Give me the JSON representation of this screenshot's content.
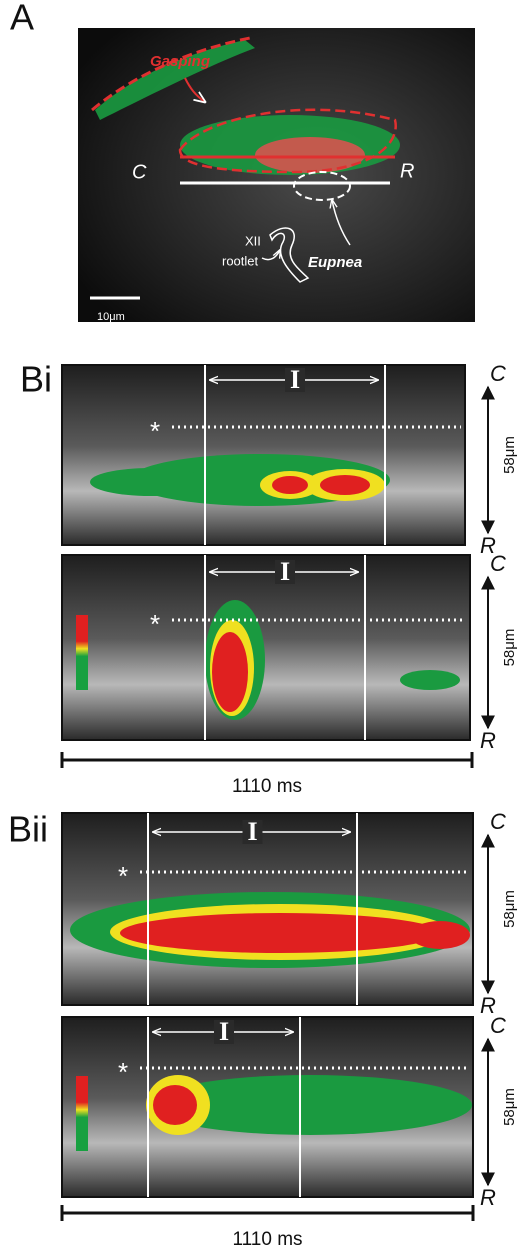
{
  "panel_a": {
    "label": "A",
    "gasping": "Gasping",
    "caudal": "C",
    "rostral": "R",
    "rootlet_1": "XII",
    "rootlet_2": "rootlet",
    "eupnea": "Eupnea",
    "scale_bar": "10μm"
  },
  "panel_bi": {
    "label": "Bi",
    "traces": [
      {
        "interval": "I",
        "marker": "*",
        "caudal": "C",
        "distance": "58μm",
        "rostral": "R"
      },
      {
        "interval": "I",
        "marker": "*",
        "caudal": "C",
        "distance": "58μm",
        "rostral": "R"
      }
    ],
    "time_scale": "1110 ms"
  },
  "panel_bii": {
    "label": "Bii",
    "traces": [
      {
        "interval": "I",
        "marker": "*",
        "caudal": "C",
        "distance": "58μm",
        "rostral": "R"
      },
      {
        "interval": "I",
        "marker": "*",
        "caudal": "C",
        "distance": "58μm",
        "rostral": "R"
      }
    ],
    "time_scale": "1110 ms"
  }
}
